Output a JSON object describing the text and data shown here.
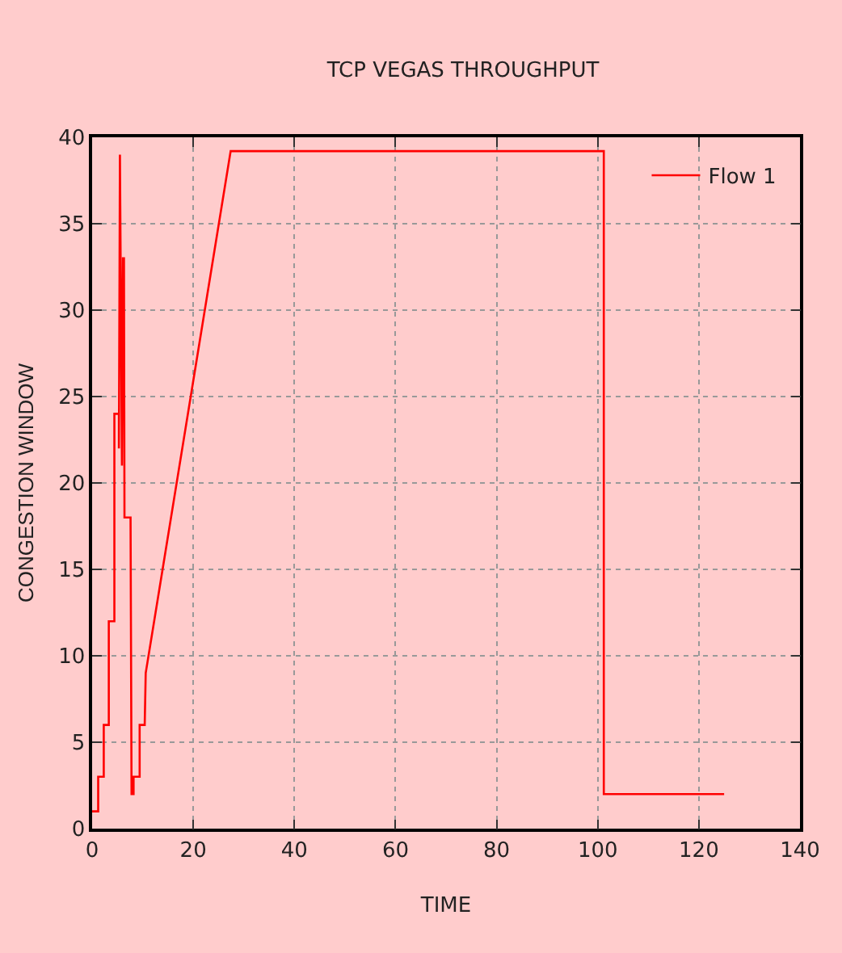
{
  "chart_data": {
    "type": "line",
    "title": "TCP VEGAS THROUGHPUT",
    "xlabel": "TIME",
    "ylabel": "CONGESTION WINDOW",
    "series": [
      {
        "name": "Flow 1",
        "color": "#ff0000",
        "x": [
          0,
          1.2,
          1.2,
          2.3,
          2.3,
          3.3,
          3.3,
          4.4,
          4.4,
          5.3,
          5.3,
          5.5,
          5.9,
          6.1,
          6.3,
          6.4,
          7.6,
          7.8,
          8.2,
          8.2,
          9.4,
          9.4,
          10.4,
          10.6,
          27.4,
          101.2,
          101.2,
          125
        ],
        "values": [
          1,
          1,
          3,
          3,
          6,
          6,
          12,
          12,
          24,
          24,
          22,
          39,
          21,
          33,
          33,
          18,
          18,
          2,
          2,
          3,
          3,
          6,
          6,
          9,
          39.2,
          39.2,
          2,
          2
        ]
      }
    ],
    "xlim": [
      0,
      140
    ],
    "xticks": [
      0,
      20,
      40,
      60,
      80,
      100,
      120,
      140
    ],
    "ylim": [
      0,
      40
    ],
    "yticks": [
      0,
      5,
      10,
      15,
      20,
      25,
      30,
      35,
      40
    ],
    "grid": true,
    "legend": "top right",
    "marker": "none",
    "line_style": "solid"
  }
}
